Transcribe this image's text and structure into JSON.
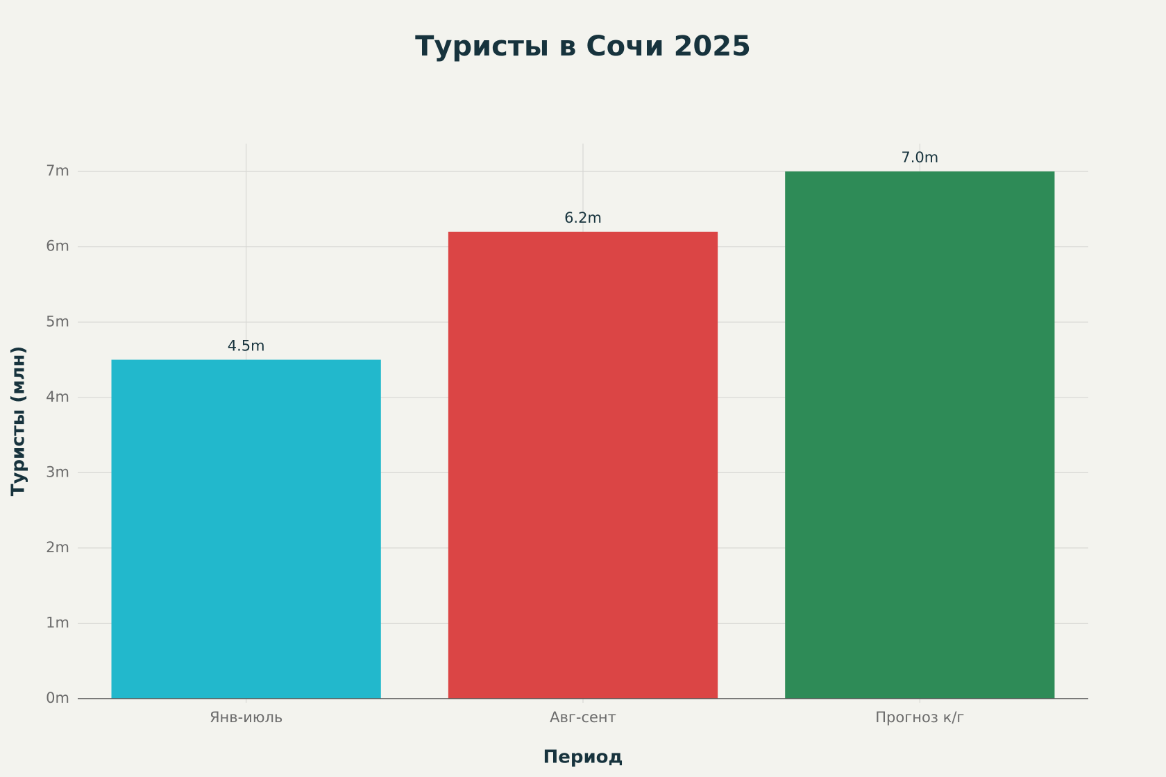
{
  "chart_data": {
    "type": "bar",
    "title": "Туристы в Сочи 2025",
    "x_label": "Период",
    "y_label": "Туристы (млн)",
    "categories": [
      "Янв-июль",
      "Авг-сент",
      "Прогноз к/г"
    ],
    "values": [
      4.5,
      6.2,
      7.0
    ],
    "value_labels": [
      "4.5m",
      "6.2m",
      "7.0m"
    ],
    "colors": [
      "#22b8cc",
      "#db4545",
      "#2e8b57"
    ],
    "ylim": [
      0,
      7.37
    ],
    "yticks": [
      {
        "value": 0,
        "label": "0m"
      },
      {
        "value": 1,
        "label": "1m"
      },
      {
        "value": 2,
        "label": "2m"
      },
      {
        "value": 3,
        "label": "3m"
      },
      {
        "value": 4,
        "label": "4m"
      },
      {
        "value": 5,
        "label": "5m"
      },
      {
        "value": 6,
        "label": "6m"
      },
      {
        "value": 7,
        "label": "7m"
      }
    ],
    "grid": true
  }
}
